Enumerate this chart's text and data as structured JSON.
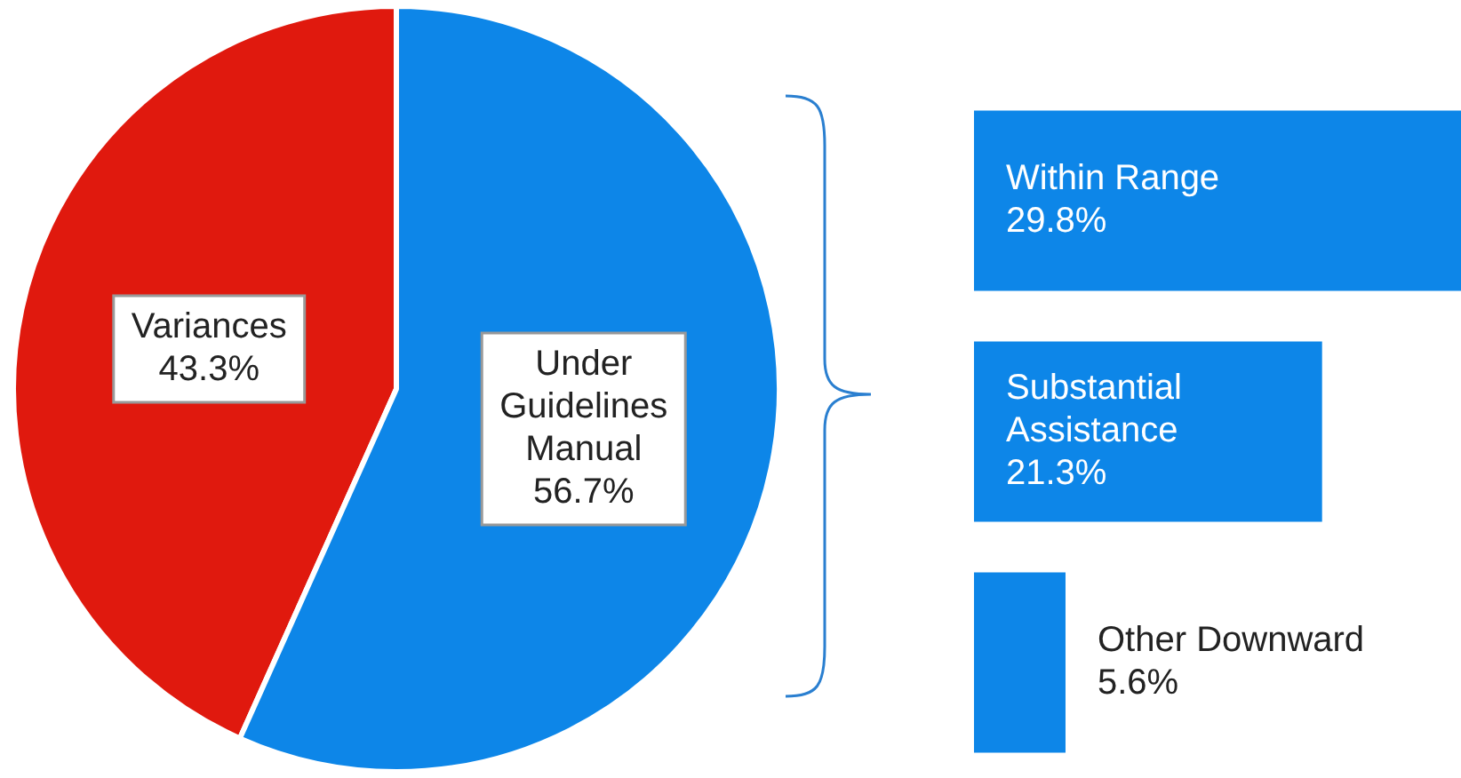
{
  "chart_data": [
    {
      "type": "pie",
      "categories": [
        "Variances",
        "Under Guidelines Manual"
      ],
      "values": [
        43.3,
        56.7
      ],
      "colors": [
        "#e0190e",
        "#0d86e8"
      ],
      "value_labels": [
        "43.3%",
        "56.7%"
      ]
    },
    {
      "type": "bar",
      "orientation": "horizontal",
      "categories": [
        "Within Range",
        "Substantial Assistance",
        "Other Downward"
      ],
      "values": [
        29.8,
        21.3,
        5.6
      ],
      "color": "#0d86e8",
      "value_labels": [
        "29.8%",
        "21.3%",
        "5.6%"
      ]
    }
  ]
}
